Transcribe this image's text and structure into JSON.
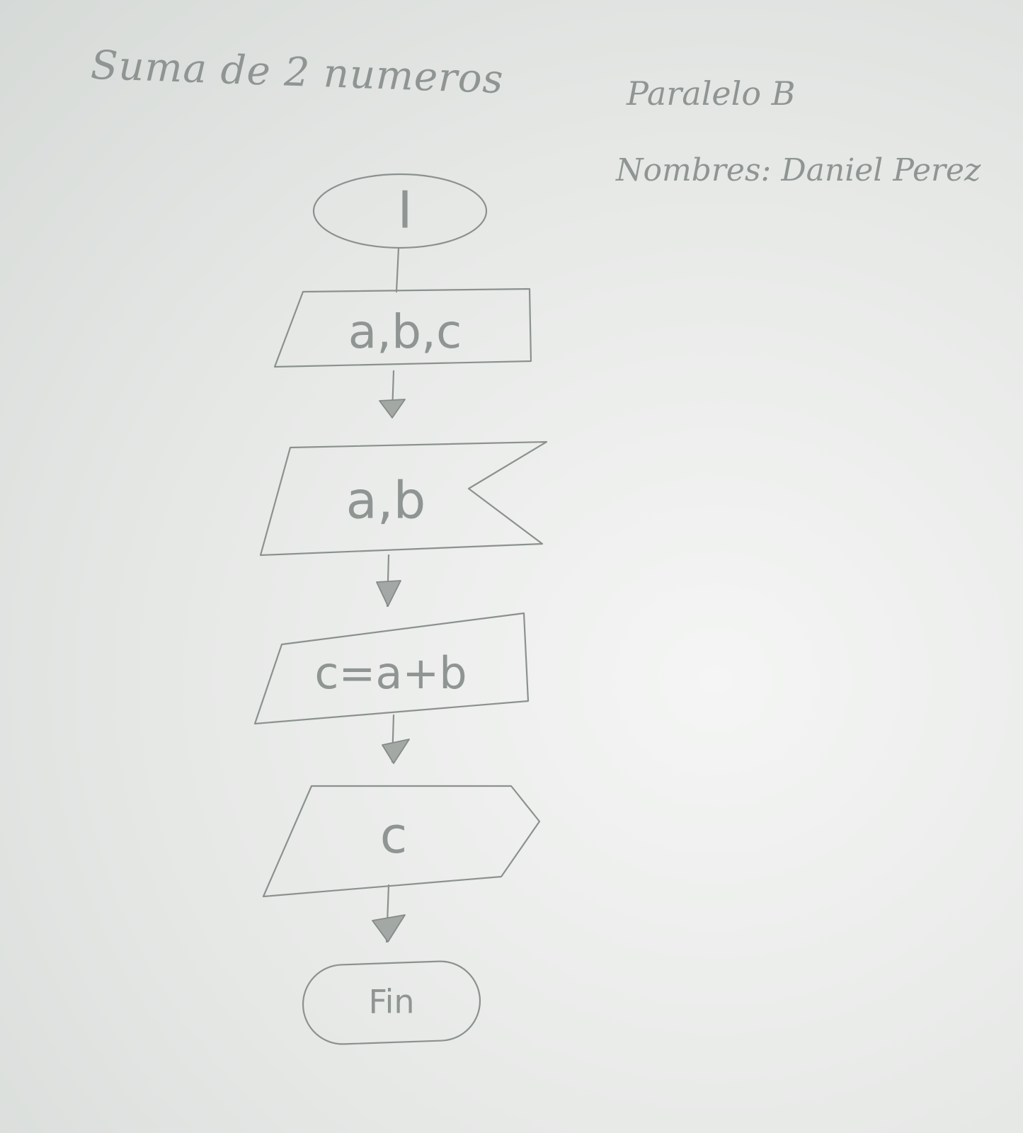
{
  "header": {
    "title": "Suma de 2 numeros",
    "paralelo": "Paralelo B",
    "nombres": "Nombres: Daniel Perez"
  },
  "flowchart": {
    "start": "I",
    "declare": "a,b,c",
    "input": "a,b",
    "process": "c=a+b",
    "output": "c",
    "end": "Fin"
  }
}
